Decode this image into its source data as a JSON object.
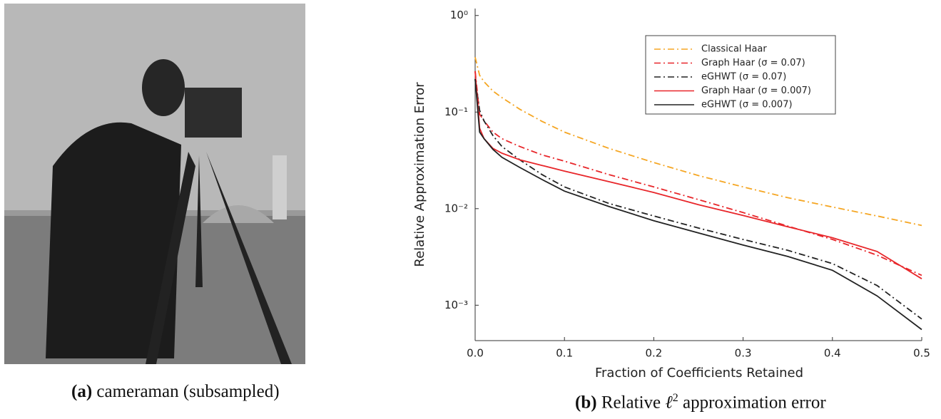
{
  "image": {
    "caption_label": "(a)",
    "caption_text": "cameraman (subsampled)"
  },
  "chart_caption": {
    "label": "(b)",
    "text": [
      "Relative",
      "ℓ",
      "2",
      "approximation error"
    ]
  },
  "chart_data": {
    "type": "line",
    "yscale": "log",
    "xlabel": "Fraction of Coefficients Retained",
    "ylabel": "Relative Approximation Error",
    "x": [
      0,
      0.005,
      0.01,
      0.02,
      0.03,
      0.05,
      0.075,
      0.1,
      0.15,
      0.2,
      0.25,
      0.3,
      0.35,
      0.4,
      0.45,
      0.5
    ],
    "xlim": [
      0,
      0.5
    ],
    "xticks": [
      {
        "value": 0,
        "label": "0.0"
      },
      0.1,
      0.2,
      0.3,
      0.4,
      0.5
    ],
    "ylim": [
      0.00043,
      1.18
    ],
    "yticks": [
      {
        "value": 1,
        "label": "10⁰"
      },
      {
        "value": 0.1,
        "label": "10⁻¹"
      },
      {
        "value": 0.01,
        "label": "10⁻²"
      },
      {
        "value": 0.001,
        "label": "10⁻³"
      }
    ],
    "legend": "upper right",
    "series": [
      {
        "name": "Classical Haar",
        "color": "#f5a623",
        "dash": "dashdot",
        "values": [
          0.37,
          0.24,
          0.206,
          0.165,
          0.141,
          0.107,
          0.08,
          0.062,
          0.042,
          0.03,
          0.022,
          0.0168,
          0.013,
          0.0104,
          0.0084,
          0.0067
        ]
      },
      {
        "name": "Graph Haar (σ = 0.07)",
        "color": "#e8262a",
        "dash": "dashdot",
        "values": [
          0.265,
          0.095,
          0.081,
          0.062,
          0.053,
          0.044,
          0.036,
          0.031,
          0.0225,
          0.0168,
          0.0124,
          0.0091,
          0.0066,
          0.0048,
          0.0033,
          0.00204
        ]
      },
      {
        "name": "eGHWT (σ = 0.07)",
        "color": "#222222",
        "dash": "dashdot",
        "values": [
          0.22,
          0.104,
          0.081,
          0.057,
          0.044,
          0.032,
          0.0225,
          0.0168,
          0.0113,
          0.0084,
          0.0063,
          0.0048,
          0.0037,
          0.0027,
          0.0016,
          0.00072
        ]
      },
      {
        "name": "Graph Haar (σ = 0.007)",
        "color": "#e8262a",
        "dash": "solid",
        "values": [
          0.265,
          0.068,
          0.053,
          0.042,
          0.0375,
          0.032,
          0.028,
          0.0245,
          0.019,
          0.0147,
          0.011,
          0.0085,
          0.0065,
          0.005,
          0.0036,
          0.00188
        ]
      },
      {
        "name": "eGHWT (σ = 0.007)",
        "color": "#222222",
        "dash": "solid",
        "values": [
          0.22,
          0.062,
          0.053,
          0.041,
          0.034,
          0.0267,
          0.02,
          0.0152,
          0.0105,
          0.0075,
          0.0056,
          0.0042,
          0.0032,
          0.0023,
          0.00125,
          0.00056
        ]
      }
    ]
  }
}
